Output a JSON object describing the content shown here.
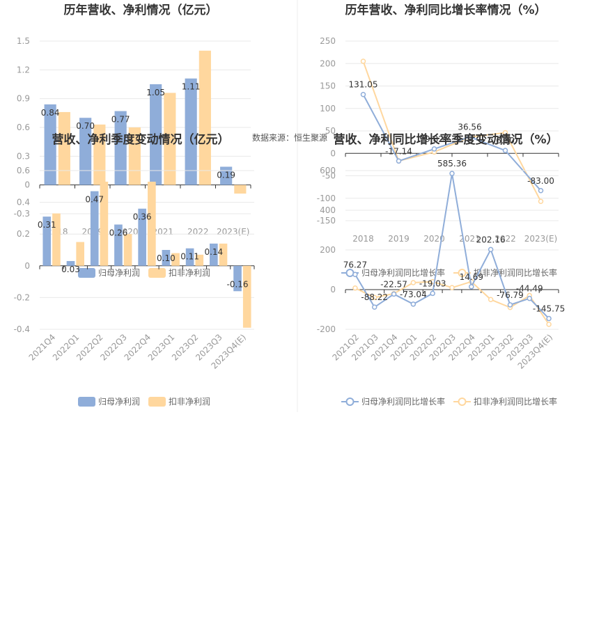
{
  "source_text": "数据来源：恒生聚源",
  "colors": {
    "blue": "#8fadd9",
    "orange": "#ffd79e",
    "grid": "#e8e8e8",
    "axis": "#333333"
  },
  "chart_data": [
    {
      "type": "bar",
      "title": "历年营收、净利情况（亿元）",
      "categories": [
        "2018",
        "2019",
        "2020",
        "2021",
        "2022",
        "2023(E)"
      ],
      "ylim": [
        -0.3,
        1.5
      ],
      "yticks": [
        "1.5",
        "1.2",
        "0.9",
        "0.6",
        "0.3",
        "0",
        "-0.3"
      ],
      "series": [
        {
          "name": "归母净利润",
          "values": [
            0.84,
            0.7,
            0.77,
            1.05,
            1.11,
            0.19
          ],
          "labels": [
            "0.84",
            "0.70",
            "0.77",
            "1.05",
            "1.11",
            "0.19"
          ]
        },
        {
          "name": "扣非净利润",
          "values": [
            0.76,
            0.63,
            0.6,
            0.96,
            1.4,
            -0.09
          ]
        }
      ],
      "legend": "bottom",
      "grid": true
    },
    {
      "type": "line",
      "title": "历年营收、净利同比增长率情况（%）",
      "categories": [
        "2018",
        "2019",
        "2020",
        "2021",
        "2022",
        "2023(E)"
      ],
      "ylim": [
        -150,
        250
      ],
      "yticks": [
        "250",
        "200",
        "150",
        "100",
        "50",
        "0",
        "-50",
        "-100",
        "-150"
      ],
      "series": [
        {
          "name": "归母净利润同比增长率",
          "values": [
            131.05,
            -17.14,
            9.82,
            36.56,
            6.3,
            -83.0
          ],
          "labels": [
            "131.05",
            "-17.14",
            "9.82",
            "36.56",
            "6.30",
            "-83.00"
          ]
        },
        {
          "name": "扣非净利润同比增长率",
          "values": [
            205.0,
            -17.0,
            3.0,
            36.0,
            46.0,
            -107.0
          ]
        }
      ],
      "legend": "bottom",
      "grid": true
    },
    {
      "type": "bar",
      "title": "营收、净利季度变动情况（亿元）",
      "categories": [
        "2021Q4",
        "2022Q1",
        "2022Q2",
        "2022Q3",
        "2022Q4",
        "2023Q1",
        "2023Q2",
        "2023Q3",
        "2023Q4(E)"
      ],
      "ylim": [
        -0.4,
        0.6
      ],
      "yticks": [
        "0.6",
        "0.4",
        "0.2",
        "0",
        "-0.2",
        "-0.4"
      ],
      "series": [
        {
          "name": "归母净利润",
          "values": [
            0.31,
            0.03,
            0.47,
            0.26,
            0.36,
            0.1,
            0.11,
            0.14,
            -0.16
          ],
          "labels": [
            "0.31",
            "0.03",
            "0.47",
            "0.26",
            "0.36",
            "0.10",
            "0.11",
            "0.14",
            "-0.16"
          ]
        },
        {
          "name": "扣非净利润",
          "values": [
            0.33,
            0.15,
            0.53,
            0.2,
            0.53,
            0.08,
            0.07,
            0.14,
            -0.39
          ]
        }
      ],
      "legend": "bottom",
      "grid": true
    },
    {
      "type": "line",
      "title": "营收、净利同比增长率季度变动情况（%）",
      "categories": [
        "2021Q2",
        "2021Q3",
        "2021Q4",
        "2022Q1",
        "2022Q2",
        "2022Q3",
        "2022Q4",
        "2023Q1",
        "2023Q2",
        "2023Q3",
        "2023Q4(E)"
      ],
      "ylim": [
        -200,
        600
      ],
      "yticks": [
        "600",
        "400",
        "200",
        "0",
        "-200"
      ],
      "series": [
        {
          "name": "归母净利润同比增长率",
          "values": [
            76.27,
            -88.22,
            -22.57,
            -73.04,
            -19.03,
            585.36,
            14.69,
            202.16,
            -76.79,
            -44.49,
            -145.75
          ],
          "labels": [
            "76.27",
            "-88.22",
            "-22.57",
            "-73.04",
            "-19.03",
            "585.36",
            "14.69",
            "202.16",
            "-76.79",
            "-44.49",
            "-145.75"
          ]
        },
        {
          "name": "扣非净利润同比增长率",
          "values": [
            8,
            -40,
            -20,
            35,
            40,
            10,
            40,
            -50,
            -90,
            -30,
            -175
          ]
        }
      ],
      "legend": "bottom",
      "grid": true
    }
  ]
}
